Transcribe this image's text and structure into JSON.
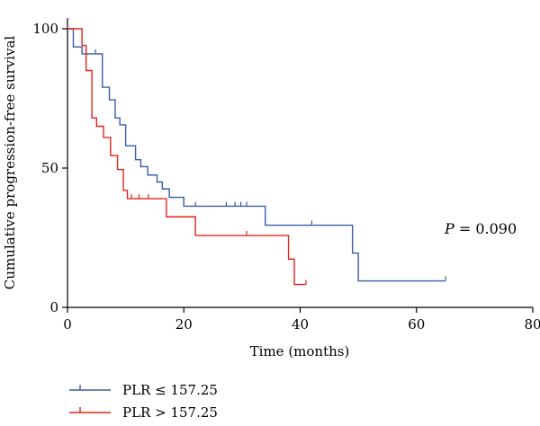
{
  "chart_data": {
    "type": "line",
    "subtype": "kaplan-meier",
    "title": "",
    "xlabel": "Time (months)",
    "ylabel": "Cumulative progression-free survival",
    "xlim": [
      0,
      80
    ],
    "ylim": [
      0,
      100
    ],
    "xticks": [
      0,
      20,
      40,
      60,
      80
    ],
    "yticks": [
      0,
      50,
      100
    ],
    "grid": false,
    "legend_position": "bottom-left",
    "annotation": {
      "italic": "P",
      "rest": " = 0.090"
    },
    "series": [
      {
        "name": "PLR ≤ 157.25",
        "color": "#3a5ba8",
        "steps": [
          [
            0,
            100
          ],
          [
            1,
            93.5
          ],
          [
            2.5,
            91
          ],
          [
            6,
            79
          ],
          [
            7.2,
            74.5
          ],
          [
            8.2,
            68
          ],
          [
            9,
            65.5
          ],
          [
            10,
            58
          ],
          [
            11.7,
            53
          ],
          [
            12.6,
            50.5
          ],
          [
            13.8,
            47.5
          ],
          [
            15.4,
            45
          ],
          [
            16.3,
            42.5
          ],
          [
            17.5,
            39.5
          ],
          [
            20,
            36.3
          ],
          [
            34,
            29.5
          ],
          [
            49,
            19.5
          ],
          [
            50,
            9.5
          ],
          [
            65,
            9.5
          ]
        ],
        "censored": [
          [
            4.8,
            91
          ],
          [
            22,
            36.3
          ],
          [
            27.3,
            36.3
          ],
          [
            28.8,
            36.3
          ],
          [
            29.8,
            36.3
          ],
          [
            30.8,
            36.3
          ],
          [
            42,
            29.5
          ],
          [
            65,
            9.5
          ]
        ]
      },
      {
        "name": "PLR > 157.25",
        "color": "#e2231a",
        "steps": [
          [
            0,
            100
          ],
          [
            2.5,
            94
          ],
          [
            3.2,
            85
          ],
          [
            4.2,
            68
          ],
          [
            5,
            65
          ],
          [
            6.2,
            61
          ],
          [
            7.4,
            54.5
          ],
          [
            8.6,
            49.5
          ],
          [
            9.6,
            42
          ],
          [
            10.3,
            39
          ],
          [
            17,
            32.5
          ],
          [
            22,
            25.8
          ],
          [
            38,
            17.3
          ],
          [
            39,
            8.2
          ],
          [
            41,
            8.2
          ]
        ],
        "censored": [
          [
            11,
            39
          ],
          [
            12.3,
            39
          ],
          [
            13.9,
            39
          ],
          [
            30.8,
            25.8
          ],
          [
            41,
            8.2
          ]
        ]
      }
    ]
  }
}
